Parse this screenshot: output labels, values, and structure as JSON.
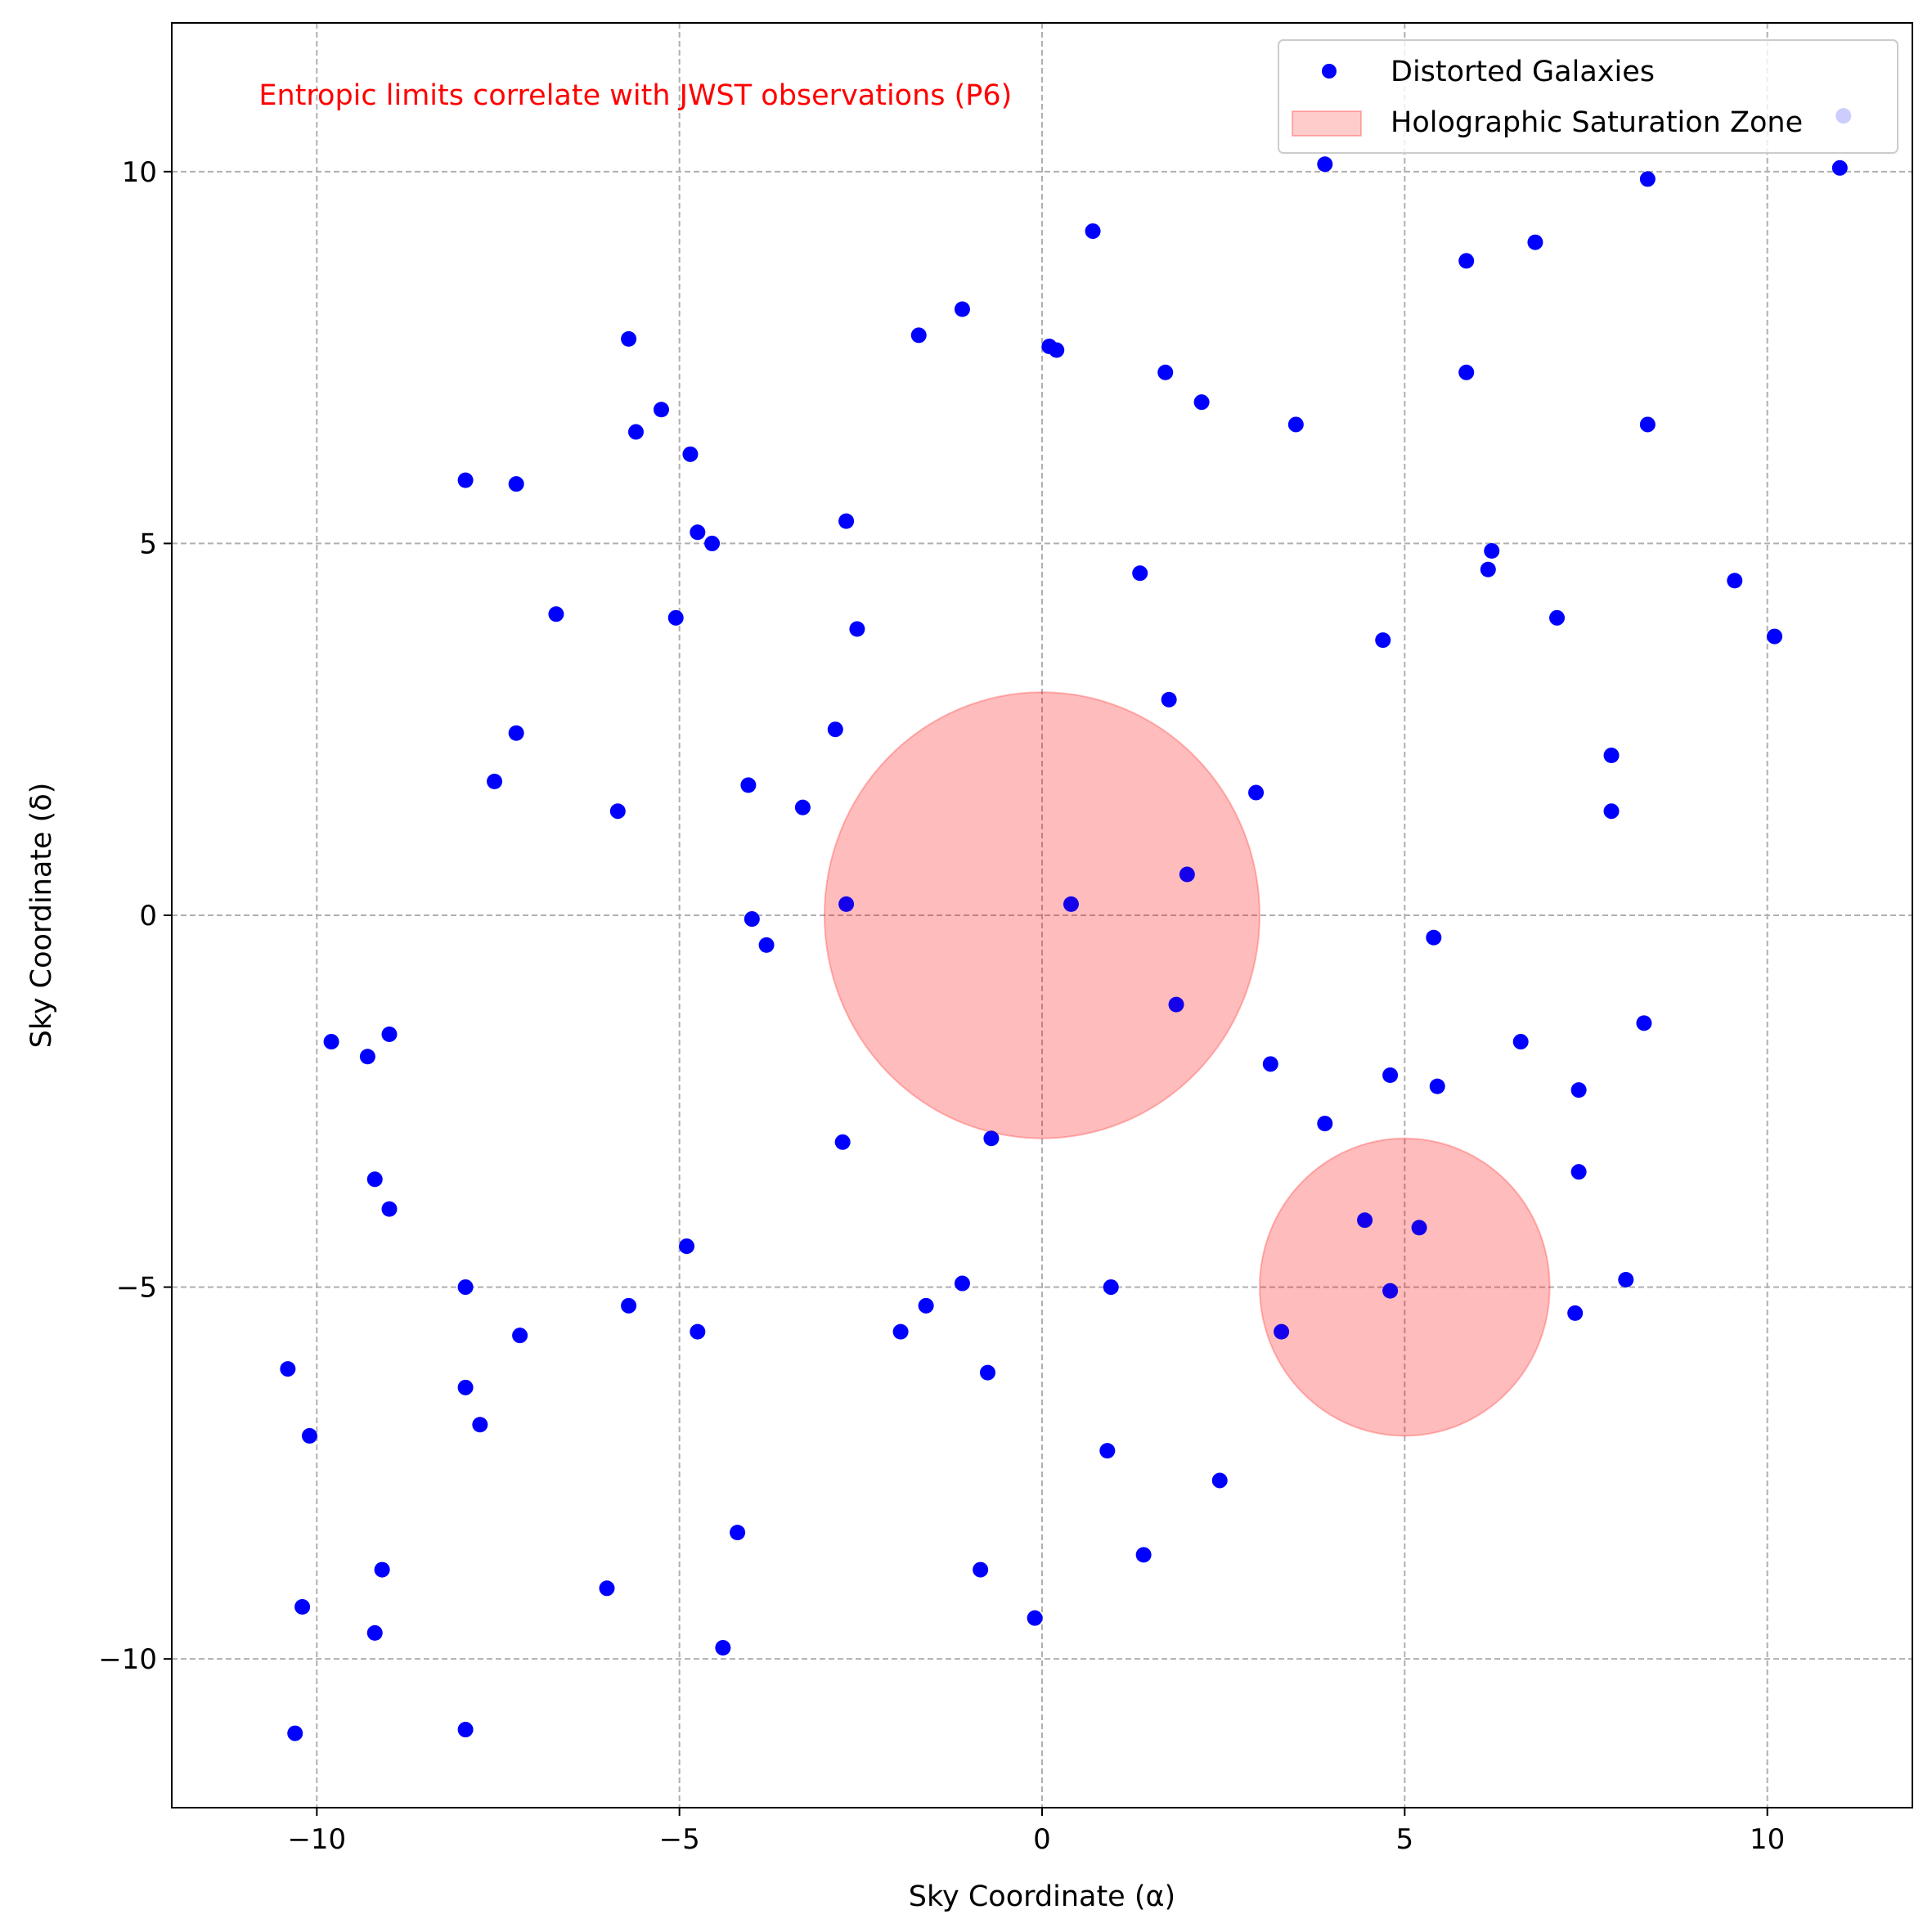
{
  "chart_data": {
    "type": "scatter",
    "title": "",
    "xlabel": "Sky Coordinate (α)",
    "ylabel": "Sky Coordinate (δ)",
    "xlim": [
      -12,
      12
    ],
    "ylim": [
      -12,
      12
    ],
    "xticks": [
      -10,
      -5,
      0,
      5,
      10
    ],
    "yticks": [
      -10,
      -5,
      0,
      5,
      10
    ],
    "xtick_labels": [
      "−10",
      "−5",
      "0",
      "5",
      "10"
    ],
    "ytick_labels": [
      "−10",
      "−5",
      "0",
      "5",
      "10"
    ],
    "grid": true,
    "legend_position": "top-right",
    "annotation": {
      "text": "Entropic limits correlate with JWST observations (P6)",
      "x": -10.8,
      "y": 10.9,
      "color": "#ff0000"
    },
    "series": [
      {
        "name": "Distorted Galaxies",
        "kind": "scatter",
        "color": "#0000ff",
        "points": [
          [
            -10.3,
            -11.0
          ],
          [
            -10.2,
            -9.3
          ],
          [
            -10.4,
            -6.1
          ],
          [
            -10.1,
            -7.0
          ],
          [
            -9.8,
            -1.7
          ],
          [
            -9.3,
            -1.9
          ],
          [
            -9.0,
            -1.6
          ],
          [
            -9.2,
            -3.55
          ],
          [
            -9.0,
            -3.95
          ],
          [
            -9.1,
            -8.8
          ],
          [
            -9.2,
            -9.65
          ],
          [
            -7.95,
            5.85
          ],
          [
            -7.95,
            -5.0
          ],
          [
            -7.95,
            -6.35
          ],
          [
            -7.75,
            -6.85
          ],
          [
            -7.55,
            1.8
          ],
          [
            -7.25,
            2.45
          ],
          [
            -7.25,
            5.8
          ],
          [
            -7.2,
            -5.65
          ],
          [
            -7.95,
            -10.95
          ],
          [
            -6.7,
            4.05
          ],
          [
            -6.0,
            -9.05
          ],
          [
            -5.85,
            1.4
          ],
          [
            -5.7,
            7.75
          ],
          [
            -5.7,
            -5.25
          ],
          [
            -5.6,
            6.5
          ],
          [
            -5.25,
            6.8
          ],
          [
            -5.05,
            4.0
          ],
          [
            -4.85,
            6.2
          ],
          [
            -4.75,
            5.15
          ],
          [
            -4.55,
            5.0
          ],
          [
            -4.9,
            -4.45
          ],
          [
            -4.75,
            -5.6
          ],
          [
            -4.4,
            -9.85
          ],
          [
            -4.2,
            -8.3
          ],
          [
            -4.05,
            1.75
          ],
          [
            -4.0,
            -0.05
          ],
          [
            -3.8,
            -0.4
          ],
          [
            -3.3,
            1.45
          ],
          [
            -2.85,
            2.5
          ],
          [
            -2.7,
            5.3
          ],
          [
            -2.7,
            0.15
          ],
          [
            -2.75,
            -3.05
          ],
          [
            -2.55,
            3.85
          ],
          [
            -1.95,
            -5.6
          ],
          [
            -1.7,
            7.8
          ],
          [
            -1.6,
            -5.25
          ],
          [
            -1.1,
            8.15
          ],
          [
            -1.1,
            -4.95
          ],
          [
            -0.85,
            -8.8
          ],
          [
            -0.75,
            -6.15
          ],
          [
            -0.7,
            -3.0
          ],
          [
            -0.1,
            -9.45
          ],
          [
            0.1,
            7.65
          ],
          [
            0.2,
            7.6
          ],
          [
            0.4,
            0.15
          ],
          [
            0.7,
            9.2
          ],
          [
            0.9,
            -7.2
          ],
          [
            0.95,
            -5.0
          ],
          [
            1.35,
            4.6
          ],
          [
            1.4,
            -8.6
          ],
          [
            1.7,
            7.3
          ],
          [
            1.75,
            2.9
          ],
          [
            1.85,
            -1.2
          ],
          [
            2.0,
            0.55
          ],
          [
            2.2,
            6.9
          ],
          [
            2.45,
            -7.6
          ],
          [
            2.95,
            1.65
          ],
          [
            3.15,
            -2.0
          ],
          [
            3.3,
            -5.6
          ],
          [
            3.5,
            6.6
          ],
          [
            3.9,
            10.1
          ],
          [
            3.9,
            -2.8
          ],
          [
            4.45,
            -4.1
          ],
          [
            4.7,
            3.7
          ],
          [
            4.8,
            -2.15
          ],
          [
            4.8,
            -5.05
          ],
          [
            5.2,
            -4.2
          ],
          [
            5.4,
            -0.3
          ],
          [
            5.45,
            -2.3
          ],
          [
            5.85,
            8.8
          ],
          [
            5.85,
            7.3
          ],
          [
            6.15,
            4.65
          ],
          [
            6.2,
            4.9
          ],
          [
            6.6,
            -1.7
          ],
          [
            6.8,
            9.05
          ],
          [
            7.1,
            4.0
          ],
          [
            7.4,
            -2.35
          ],
          [
            7.4,
            -3.45
          ],
          [
            7.35,
            -5.35
          ],
          [
            7.85,
            2.15
          ],
          [
            7.85,
            1.4
          ],
          [
            8.05,
            -4.9
          ],
          [
            8.3,
            -1.45
          ],
          [
            8.35,
            9.9
          ],
          [
            8.35,
            6.6
          ],
          [
            9.55,
            4.5
          ],
          [
            10.1,
            3.75
          ],
          [
            11.0,
            10.05
          ],
          [
            11.05,
            10.75
          ]
        ]
      },
      {
        "name": "Holographic Saturation Zone",
        "kind": "circle",
        "color": "#ff0000",
        "opacity": 0.2,
        "circles": [
          {
            "cx": 0,
            "cy": 0,
            "r": 3
          },
          {
            "cx": 5,
            "cy": -5,
            "r": 2
          }
        ]
      }
    ]
  }
}
